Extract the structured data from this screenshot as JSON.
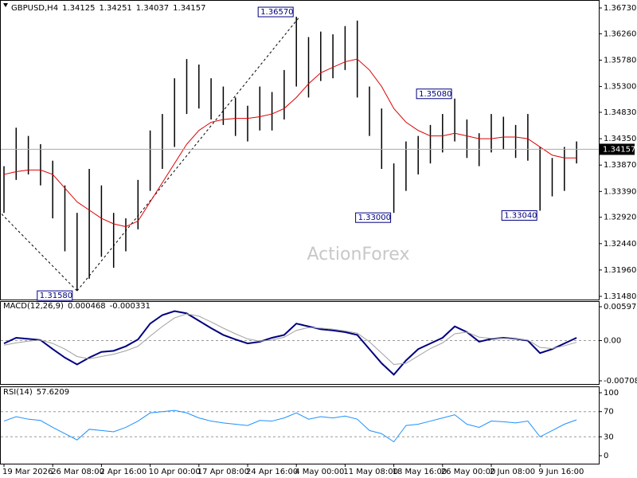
{
  "chart_data": [
    {
      "type": "bar-range",
      "symbol": "GBPUSD,H4",
      "header_values": [
        1.34125,
        1.34251,
        1.34037,
        1.34157
      ],
      "watermark": "ActionForex",
      "last_price": 1.34157,
      "color": "#000000",
      "ma_color": "#dd0000",
      "categories": [
        "19 Mar 2026",
        null,
        null,
        null,
        "26 Mar 08:00",
        null,
        null,
        null,
        "2 Apr 16:00",
        null,
        null,
        null,
        "10 Apr 00:00",
        null,
        null,
        null,
        "17 Apr 08:00",
        null,
        null,
        null,
        "24 Apr 16:00",
        null,
        null,
        null,
        "4 May 00:00",
        null,
        null,
        null,
        "11 May 08:00",
        null,
        null,
        null,
        "18 May 16:00",
        null,
        null,
        null,
        "26 May 00:00",
        null,
        null,
        null,
        "2 Jun 08:00",
        null,
        null,
        null,
        "9 Jun 16:00",
        null,
        null,
        null
      ],
      "high": [
        1.3385,
        1.3455,
        1.344,
        1.3425,
        1.3395,
        1.335,
        1.33,
        1.338,
        1.335,
        1.33,
        1.329,
        1.336,
        1.345,
        1.348,
        1.3545,
        1.358,
        1.357,
        1.3545,
        1.353,
        1.351,
        1.3495,
        1.353,
        1.352,
        1.356,
        1.3657,
        1.362,
        1.363,
        1.3625,
        1.364,
        1.365,
        1.353,
        1.349,
        1.339,
        1.343,
        1.344,
        1.346,
        1.348,
        1.3508,
        1.347,
        1.3445,
        1.348,
        1.3475,
        1.346,
        1.348,
        1.342,
        1.34,
        1.342,
        1.343
      ],
      "low": [
        1.33,
        1.336,
        1.337,
        1.335,
        1.329,
        1.323,
        1.3158,
        1.318,
        1.322,
        1.32,
        1.323,
        1.327,
        1.334,
        1.338,
        1.342,
        1.348,
        1.349,
        1.347,
        1.346,
        1.344,
        1.343,
        1.345,
        1.345,
        1.347,
        1.353,
        1.351,
        1.354,
        1.3545,
        1.356,
        1.351,
        1.344,
        1.338,
        1.33,
        1.334,
        1.337,
        1.339,
        1.341,
        1.343,
        1.34,
        1.3385,
        1.341,
        1.3415,
        1.34,
        1.3395,
        1.3304,
        1.333,
        1.334,
        1.339
      ],
      "ma": [
        1.337,
        1.3375,
        1.3378,
        1.3378,
        1.337,
        1.3345,
        1.332,
        1.3305,
        1.329,
        1.328,
        1.3275,
        1.3285,
        1.332,
        1.3355,
        1.339,
        1.3425,
        1.345,
        1.3465,
        1.347,
        1.3472,
        1.3472,
        1.3475,
        1.348,
        1.349,
        1.351,
        1.3535,
        1.3555,
        1.3565,
        1.3575,
        1.358,
        1.356,
        1.353,
        1.349,
        1.3465,
        1.345,
        1.344,
        1.344,
        1.3445,
        1.344,
        1.3435,
        1.3435,
        1.3438,
        1.3438,
        1.3435,
        1.342,
        1.3405,
        1.34,
        1.34
      ],
      "annotations": [
        {
          "value": 1.3657,
          "label": "1.36570"
        },
        {
          "value": 1.3158,
          "label": "1.31580"
        },
        {
          "value": 1.33,
          "label": "1.33000"
        },
        {
          "value": 1.3508,
          "label": "1.35080"
        },
        {
          "value": 1.3304,
          "label": "1.33040"
        }
      ],
      "ylim": [
        1.3148,
        1.3673
      ],
      "yticks": [
        {
          "value": 1.3673,
          "label": "1.36730"
        },
        {
          "value": 1.3626,
          "label": "1.36260"
        },
        {
          "value": 1.3578,
          "label": "1.35780"
        },
        {
          "value": 1.353,
          "label": "1.35300"
        },
        {
          "value": 1.3483,
          "label": "1.34830"
        },
        {
          "value": 1.3435,
          "label": "1.34350"
        },
        {
          "value": 1.3387,
          "label": "1.33870"
        },
        {
          "value": 1.3339,
          "label": "1.33390"
        },
        {
          "value": 1.3292,
          "label": "1.32920"
        },
        {
          "value": 1.3244,
          "label": "1.32440"
        },
        {
          "value": 1.3196,
          "label": "1.31960"
        },
        {
          "value": 1.3148,
          "label": "1.31480"
        }
      ]
    },
    {
      "type": "line",
      "title": "MACD(12,26,9)",
      "header_values": [
        0.000468,
        -0.000331
      ],
      "series": [
        {
          "color": "#000080",
          "values": [
            -0.0005,
            0.0005,
            0.0003,
            0.0001,
            -0.0015,
            -0.003,
            -0.0042,
            -0.003,
            -0.002,
            -0.0018,
            -0.001,
            0.0002,
            0.003,
            0.0045,
            0.0052,
            0.0048,
            0.0035,
            0.0022,
            0.001,
            0.0002,
            -0.0005,
            -0.0002,
            0.0005,
            0.001,
            0.003,
            0.0025,
            0.002,
            0.0018,
            0.0015,
            0.001,
            -0.0015,
            -0.004,
            -0.006,
            -0.0035,
            -0.0015,
            -0.0005,
            0.0005,
            0.0025,
            0.0015,
            -0.0002,
            0.0003,
            0.0005,
            0.0003,
            0,
            -0.0022,
            -0.0015,
            -0.0005,
            0.0005
          ]
        },
        {
          "color": "#a0a0a0",
          "values": [
            -0.0008,
            -0.0004,
            -0.0001,
            0.0001,
            -0.0005,
            -0.0015,
            -0.0028,
            -0.0032,
            -0.0028,
            -0.0024,
            -0.0018,
            -0.001,
            0.0008,
            0.0025,
            0.004,
            0.0047,
            0.0043,
            0.0033,
            0.0022,
            0.0012,
            0.0003,
            -0.0001,
            0.0001,
            0.0006,
            0.0018,
            0.0023,
            0.0022,
            0.002,
            0.0017,
            0.0013,
            -0.0002,
            -0.0022,
            -0.0042,
            -0.004,
            -0.0027,
            -0.0014,
            -0.0004,
            0.0012,
            0.0015,
            0.0006,
            0.0004,
            0.0004,
            0.0003,
            0.0001,
            -0.0012,
            -0.0014,
            -0.0009,
            -0.0003
          ]
        }
      ],
      "ylim": [
        -0.007086,
        0.005973
      ],
      "yticks": [
        0.005973,
        {
          "value": 0,
          "label": "0.00"
        },
        -0.007086
      ]
    },
    {
      "type": "line",
      "title": "RSI(14)",
      "header_values": [
        57.6209
      ],
      "series": [
        {
          "color": "#1e90ff",
          "values": [
            55,
            62,
            58,
            56,
            45,
            35,
            25,
            42,
            40,
            38,
            45,
            55,
            68,
            70,
            72,
            68,
            60,
            55,
            52,
            50,
            48,
            56,
            55,
            60,
            68,
            58,
            62,
            60,
            63,
            58,
            40,
            35,
            22,
            48,
            50,
            55,
            60,
            65,
            50,
            45,
            55,
            54,
            52,
            55,
            30,
            40,
            50,
            57
          ]
        }
      ],
      "ylim": [
        0,
        100
      ],
      "yticks": [
        100,
        70,
        30,
        0
      ]
    }
  ]
}
